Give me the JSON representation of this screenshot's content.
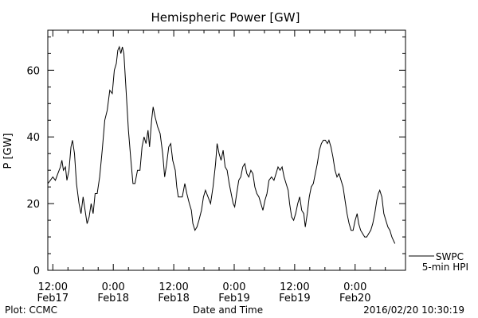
{
  "chart_data": {
    "type": "line",
    "title": "Hemispheric Power [GW]",
    "xlabel": "Date and Time",
    "ylabel": "P [GW]",
    "xlim": [
      -1.0,
      70.0
    ],
    "ylim": [
      0,
      72
    ],
    "yticks": [
      0,
      20,
      40,
      60
    ],
    "xticks": [
      {
        "x": 0,
        "line1": "12:00",
        "line2": "Feb17"
      },
      {
        "x": 12,
        "line1": "0:00",
        "line2": "Feb18"
      },
      {
        "x": 24,
        "line1": "12:00",
        "line2": "Feb18"
      },
      {
        "x": 36,
        "line1": "0:00",
        "line2": "Feb19"
      },
      {
        "x": 48,
        "line1": "12:00",
        "line2": "Feb19"
      },
      {
        "x": 60,
        "line1": "0:00",
        "line2": "Feb20"
      }
    ],
    "x_unit": "hours after 2016-02-17 12:00",
    "series": [
      {
        "name": "SWPC 5-min HPI",
        "color": "#000000",
        "points": [
          [
            -1.0,
            26
          ],
          [
            -0.5,
            27
          ],
          [
            0.0,
            28
          ],
          [
            0.5,
            27
          ],
          [
            1.0,
            29
          ],
          [
            1.5,
            31
          ],
          [
            1.8,
            33
          ],
          [
            2.1,
            30
          ],
          [
            2.5,
            31
          ],
          [
            2.8,
            27
          ],
          [
            3.2,
            30
          ],
          [
            3.6,
            37
          ],
          [
            3.9,
            39
          ],
          [
            4.3,
            35
          ],
          [
            4.7,
            26
          ],
          [
            5.2,
            20
          ],
          [
            5.6,
            17
          ],
          [
            6.0,
            22
          ],
          [
            6.4,
            18
          ],
          [
            6.8,
            14
          ],
          [
            7.2,
            16
          ],
          [
            7.6,
            20
          ],
          [
            8.0,
            17
          ],
          [
            8.4,
            23
          ],
          [
            8.8,
            23
          ],
          [
            9.3,
            28
          ],
          [
            9.8,
            36
          ],
          [
            10.3,
            45
          ],
          [
            10.8,
            48
          ],
          [
            11.3,
            54
          ],
          [
            11.8,
            53
          ],
          [
            12.2,
            60
          ],
          [
            12.6,
            62
          ],
          [
            12.9,
            66
          ],
          [
            13.2,
            67
          ],
          [
            13.5,
            65
          ],
          [
            13.8,
            67
          ],
          [
            14.1,
            65
          ],
          [
            14.5,
            55
          ],
          [
            15.0,
            42
          ],
          [
            15.5,
            33
          ],
          [
            15.9,
            26
          ],
          [
            16.3,
            26
          ],
          [
            16.8,
            30
          ],
          [
            17.3,
            30
          ],
          [
            17.7,
            37
          ],
          [
            18.1,
            40
          ],
          [
            18.5,
            38
          ],
          [
            18.9,
            42
          ],
          [
            19.2,
            37
          ],
          [
            19.6,
            45
          ],
          [
            19.9,
            49
          ],
          [
            20.3,
            46
          ],
          [
            20.8,
            43
          ],
          [
            21.3,
            41
          ],
          [
            21.8,
            35
          ],
          [
            22.2,
            28
          ],
          [
            22.6,
            32
          ],
          [
            23.0,
            37
          ],
          [
            23.4,
            38
          ],
          [
            23.8,
            33
          ],
          [
            24.3,
            30
          ],
          [
            24.6,
            25
          ],
          [
            24.9,
            22
          ],
          [
            25.3,
            22
          ],
          [
            25.7,
            22
          ],
          [
            26.2,
            26
          ],
          [
            26.6,
            23
          ],
          [
            27.1,
            20
          ],
          [
            27.5,
            18
          ],
          [
            27.8,
            14
          ],
          [
            28.2,
            12
          ],
          [
            28.6,
            13
          ],
          [
            29.0,
            15
          ],
          [
            29.5,
            18
          ],
          [
            29.9,
            22
          ],
          [
            30.3,
            24
          ],
          [
            30.8,
            22
          ],
          [
            31.3,
            20
          ],
          [
            31.8,
            25
          ],
          [
            32.3,
            32
          ],
          [
            32.6,
            38
          ],
          [
            33.0,
            35
          ],
          [
            33.4,
            33
          ],
          [
            33.8,
            36
          ],
          [
            34.2,
            31
          ],
          [
            34.6,
            30
          ],
          [
            35.0,
            26
          ],
          [
            35.4,
            23
          ],
          [
            35.8,
            20
          ],
          [
            36.1,
            19
          ],
          [
            36.5,
            23
          ],
          [
            36.9,
            27
          ],
          [
            37.3,
            28
          ],
          [
            37.7,
            31
          ],
          [
            38.1,
            32
          ],
          [
            38.5,
            29
          ],
          [
            38.9,
            28
          ],
          [
            39.3,
            30
          ],
          [
            39.7,
            29
          ],
          [
            40.1,
            25
          ],
          [
            40.5,
            23
          ],
          [
            40.9,
            22
          ],
          [
            41.3,
            20
          ],
          [
            41.7,
            18
          ],
          [
            42.1,
            21
          ],
          [
            42.5,
            23
          ],
          [
            42.9,
            27
          ],
          [
            43.4,
            28
          ],
          [
            43.9,
            27
          ],
          [
            44.3,
            29
          ],
          [
            44.7,
            31
          ],
          [
            45.1,
            30
          ],
          [
            45.5,
            31
          ],
          [
            45.9,
            28
          ],
          [
            46.3,
            26
          ],
          [
            46.7,
            24
          ],
          [
            47.0,
            20
          ],
          [
            47.4,
            16
          ],
          [
            47.8,
            15
          ],
          [
            48.2,
            17
          ],
          [
            48.6,
            20
          ],
          [
            49.0,
            22
          ],
          [
            49.4,
            18
          ],
          [
            49.8,
            17
          ],
          [
            50.1,
            13
          ],
          [
            50.5,
            17
          ],
          [
            50.9,
            22
          ],
          [
            51.3,
            25
          ],
          [
            51.7,
            26
          ],
          [
            52.1,
            29
          ],
          [
            52.5,
            32
          ],
          [
            52.9,
            36
          ],
          [
            53.3,
            38
          ],
          [
            53.7,
            39
          ],
          [
            54.1,
            39
          ],
          [
            54.5,
            38
          ],
          [
            54.8,
            39
          ],
          [
            55.2,
            37
          ],
          [
            55.6,
            34
          ],
          [
            56.0,
            30
          ],
          [
            56.4,
            28
          ],
          [
            56.8,
            29
          ],
          [
            57.2,
            27
          ],
          [
            57.6,
            25
          ],
          [
            58.0,
            21
          ],
          [
            58.4,
            17
          ],
          [
            58.8,
            14
          ],
          [
            59.2,
            12
          ],
          [
            59.6,
            12
          ],
          [
            60.0,
            15
          ],
          [
            60.4,
            17
          ],
          [
            60.7,
            14
          ],
          [
            61.1,
            12
          ],
          [
            61.5,
            11
          ],
          [
            61.9,
            10
          ],
          [
            62.3,
            10
          ],
          [
            62.7,
            11
          ],
          [
            63.1,
            12
          ],
          [
            63.5,
            14
          ],
          [
            63.9,
            17
          ],
          [
            64.3,
            21
          ],
          [
            64.6,
            23
          ],
          [
            64.9,
            24
          ],
          [
            65.3,
            22
          ],
          [
            65.7,
            17
          ],
          [
            66.1,
            15
          ],
          [
            66.5,
            13
          ],
          [
            66.9,
            12
          ],
          [
            67.3,
            10
          ],
          [
            67.6,
            9
          ],
          [
            67.9,
            8
          ]
        ]
      }
    ]
  },
  "legend": {
    "line1": "SWPC",
    "line2": "5-min HPI"
  },
  "footer": {
    "left": "Plot: CCMC",
    "right": "2016/02/20 10:30:19"
  }
}
